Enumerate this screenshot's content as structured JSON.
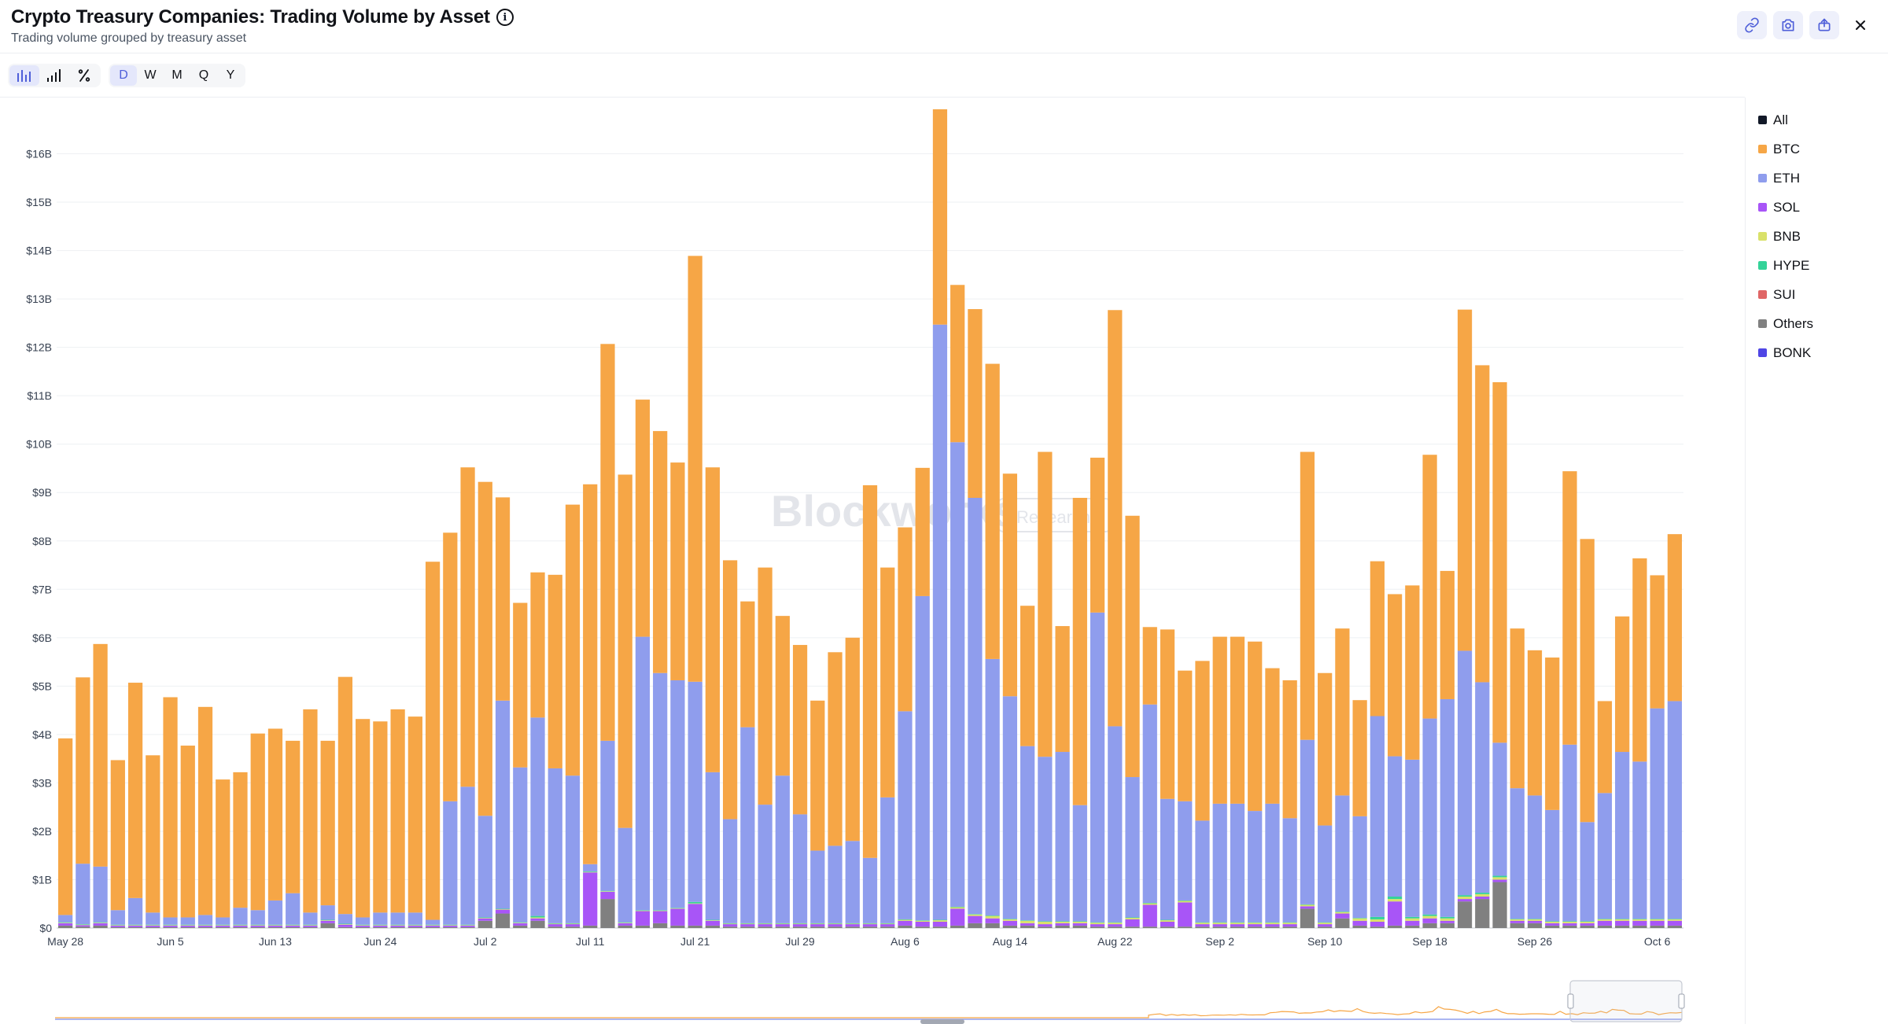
{
  "header": {
    "title": "Crypto Treasury Companies: Trading Volume by Asset",
    "subtitle": "Trading volume grouped by treasury asset"
  },
  "toolbar": {
    "chart_modes": [
      "bar-chart-icon",
      "bar-ascending-icon",
      "percent-icon"
    ],
    "timeframes": [
      "D",
      "W",
      "M",
      "Q",
      "Y"
    ],
    "active_timeframe": "D"
  },
  "header_actions": [
    "link-icon",
    "camera-icon",
    "share-icon",
    "close-icon"
  ],
  "legend": [
    {
      "name": "All",
      "color": "#111827"
    },
    {
      "name": "BTC",
      "color": "#f6a646"
    },
    {
      "name": "ETH",
      "color": "#8f9ded"
    },
    {
      "name": "SOL",
      "color": "#a855f7"
    },
    {
      "name": "BNB",
      "color": "#d9e16a"
    },
    {
      "name": "HYPE",
      "color": "#34d399"
    },
    {
      "name": "SUI",
      "color": "#e06666"
    },
    {
      "name": "Others",
      "color": "#808080"
    },
    {
      "name": "BONK",
      "color": "#4f46e5"
    }
  ],
  "watermark": {
    "brand": "Blockworks",
    "tag": "Research"
  },
  "chart_data": {
    "type": "bar",
    "stacked": true,
    "title": "Crypto Treasury Companies: Trading Volume by Asset",
    "ylim": [
      0,
      17
    ],
    "yticks": [
      "$0",
      "$1B",
      "$2B",
      "$3B",
      "$4B",
      "$5B",
      "$6B",
      "$7B",
      "$8B",
      "$9B",
      "$10B",
      "$11B",
      "$12B",
      "$13B",
      "$14B",
      "$15B",
      "$16B"
    ],
    "xtick_labels": [
      {
        "label": "May 28",
        "index": 0
      },
      {
        "label": "Jun 5",
        "index": 6
      },
      {
        "label": "Jun 13",
        "index": 12
      },
      {
        "label": "Jun 24",
        "index": 18
      },
      {
        "label": "Jul 2",
        "index": 24
      },
      {
        "label": "Jul 11",
        "index": 30
      },
      {
        "label": "Jul 21",
        "index": 36
      },
      {
        "label": "Jul 29",
        "index": 42
      },
      {
        "label": "Aug 6",
        "index": 48
      },
      {
        "label": "Aug 14",
        "index": 54
      },
      {
        "label": "Aug 22",
        "index": 60
      },
      {
        "label": "Sep 2",
        "index": 66
      },
      {
        "label": "Sep 10",
        "index": 72
      },
      {
        "label": "Sep 18",
        "index": 78
      },
      {
        "label": "Sep 26",
        "index": 84
      },
      {
        "label": "Oct 6",
        "index": 91
      }
    ],
    "series": [
      {
        "name": "Others",
        "color": "#808080",
        "values": [
          0.05,
          0.03,
          0.05,
          0.02,
          0.02,
          0.02,
          0.02,
          0.02,
          0.02,
          0.02,
          0.02,
          0.02,
          0.02,
          0.02,
          0.02,
          0.1,
          0.02,
          0.02,
          0.02,
          0.02,
          0.02,
          0.02,
          0.02,
          0.02,
          0.15,
          0.3,
          0.05,
          0.15,
          0.03,
          0.03,
          0.05,
          0.6,
          0.05,
          0.05,
          0.1,
          0.05,
          0.05,
          0.05,
          0.03,
          0.03,
          0.03,
          0.03,
          0.03,
          0.03,
          0.03,
          0.03,
          0.03,
          0.03,
          0.05,
          0.03,
          0.03,
          0.05,
          0.1,
          0.1,
          0.05,
          0.05,
          0.03,
          0.05,
          0.05,
          0.03,
          0.03,
          0.03,
          0.03,
          0.03,
          0.03,
          0.03,
          0.03,
          0.03,
          0.03,
          0.03,
          0.03,
          0.4,
          0.03,
          0.2,
          0.05,
          0.03,
          0.05,
          0.05,
          0.1,
          0.1,
          0.55,
          0.6,
          0.95,
          0.1,
          0.1,
          0.05,
          0.05,
          0.05,
          0.05,
          0.05,
          0.05,
          0.05,
          0.05
        ]
      },
      {
        "name": "SOL",
        "color": "#a855f7",
        "values": [
          0.05,
          0.03,
          0.05,
          0.03,
          0.03,
          0.03,
          0.03,
          0.03,
          0.03,
          0.03,
          0.03,
          0.03,
          0.03,
          0.03,
          0.03,
          0.05,
          0.05,
          0.03,
          0.03,
          0.03,
          0.03,
          0.03,
          0.03,
          0.03,
          0.05,
          0.08,
          0.05,
          0.05,
          0.05,
          0.05,
          1.1,
          0.15,
          0.05,
          0.3,
          0.25,
          0.35,
          0.45,
          0.1,
          0.05,
          0.05,
          0.05,
          0.05,
          0.05,
          0.05,
          0.05,
          0.05,
          0.05,
          0.05,
          0.1,
          0.1,
          0.1,
          0.35,
          0.15,
          0.1,
          0.1,
          0.05,
          0.05,
          0.05,
          0.05,
          0.05,
          0.05,
          0.15,
          0.45,
          0.1,
          0.5,
          0.05,
          0.05,
          0.05,
          0.05,
          0.05,
          0.05,
          0.05,
          0.05,
          0.1,
          0.1,
          0.1,
          0.5,
          0.1,
          0.1,
          0.05,
          0.05,
          0.05,
          0.05,
          0.05,
          0.05,
          0.05,
          0.05,
          0.05,
          0.1,
          0.1,
          0.1,
          0.1,
          0.1
        ]
      },
      {
        "name": "BNB",
        "color": "#d9e16a",
        "values": [
          0.01,
          0.01,
          0.01,
          0.01,
          0.01,
          0.01,
          0.01,
          0.01,
          0.01,
          0.01,
          0.01,
          0.01,
          0.01,
          0.01,
          0.01,
          0.01,
          0.01,
          0.01,
          0.01,
          0.01,
          0.01,
          0.01,
          0.01,
          0.01,
          0.01,
          0.01,
          0.01,
          0.02,
          0.01,
          0.01,
          0.01,
          0.01,
          0.01,
          0.01,
          0.01,
          0.01,
          0.01,
          0.01,
          0.01,
          0.01,
          0.01,
          0.01,
          0.01,
          0.01,
          0.01,
          0.01,
          0.01,
          0.01,
          0.02,
          0.02,
          0.03,
          0.03,
          0.03,
          0.05,
          0.03,
          0.05,
          0.05,
          0.03,
          0.03,
          0.03,
          0.03,
          0.03,
          0.03,
          0.03,
          0.03,
          0.03,
          0.03,
          0.03,
          0.03,
          0.03,
          0.03,
          0.03,
          0.03,
          0.03,
          0.05,
          0.05,
          0.05,
          0.05,
          0.05,
          0.05,
          0.05,
          0.05,
          0.05,
          0.03,
          0.03,
          0.03,
          0.03,
          0.03,
          0.03,
          0.03,
          0.03,
          0.03,
          0.03
        ]
      },
      {
        "name": "HYPE",
        "color": "#34d399",
        "values": [
          0.01,
          0.01,
          0.01,
          0.01,
          0.01,
          0.01,
          0.01,
          0.01,
          0.01,
          0.01,
          0.01,
          0.01,
          0.01,
          0.01,
          0.01,
          0.01,
          0.01,
          0.01,
          0.01,
          0.01,
          0.01,
          0.01,
          0.01,
          0.01,
          0.01,
          0.01,
          0.01,
          0.03,
          0.01,
          0.01,
          0.01,
          0.01,
          0.01,
          0.01,
          0.01,
          0.01,
          0.03,
          0.01,
          0.01,
          0.01,
          0.01,
          0.01,
          0.01,
          0.01,
          0.01,
          0.01,
          0.01,
          0.01,
          0.01,
          0.01,
          0.01,
          0.01,
          0.01,
          0.01,
          0.01,
          0.01,
          0.01,
          0.01,
          0.01,
          0.01,
          0.01,
          0.01,
          0.01,
          0.01,
          0.01,
          0.01,
          0.01,
          0.01,
          0.01,
          0.01,
          0.01,
          0.01,
          0.01,
          0.01,
          0.01,
          0.05,
          0.05,
          0.03,
          0.03,
          0.03,
          0.03,
          0.03,
          0.03,
          0.01,
          0.01,
          0.01,
          0.01,
          0.01,
          0.01,
          0.01,
          0.01,
          0.01,
          0.01
        ]
      },
      {
        "name": "ETH",
        "color": "#8f9ded",
        "values": [
          0.15,
          1.25,
          1.15,
          0.3,
          0.55,
          0.25,
          0.15,
          0.15,
          0.2,
          0.15,
          0.35,
          0.3,
          0.5,
          0.65,
          0.25,
          0.3,
          0.2,
          0.15,
          0.25,
          0.25,
          0.25,
          0.1,
          2.55,
          2.85,
          2.1,
          4.3,
          3.2,
          4.1,
          3.2,
          3.05,
          0.15,
          3.1,
          1.95,
          5.65,
          4.9,
          4.7,
          4.55,
          3.05,
          2.15,
          4.05,
          2.45,
          3.05,
          2.25,
          1.5,
          1.6,
          1.7,
          1.35,
          2.6,
          4.3,
          6.7,
          12.3,
          9.6,
          8.6,
          5.3,
          4.6,
          3.6,
          3.4,
          3.5,
          2.4,
          6.4,
          4.05,
          2.9,
          4.1,
          2.5,
          2.05,
          2.1,
          2.45,
          2.45,
          2.3,
          2.45,
          2.15,
          3.4,
          2.0,
          2.4,
          2.1,
          4.15,
          2.9,
          3.25,
          4.05,
          4.5,
          5.05,
          4.35,
          2.75,
          2.7,
          2.55,
          2.3,
          3.65,
          2.05,
          2.6,
          3.45,
          3.25,
          4.35,
          4.5
        ]
      },
      {
        "name": "BTC",
        "color": "#f6a646",
        "values": [
          3.65,
          3.85,
          4.6,
          3.1,
          4.45,
          3.25,
          4.55,
          3.55,
          4.3,
          2.85,
          2.8,
          3.65,
          3.55,
          3.15,
          4.2,
          3.4,
          4.9,
          4.1,
          3.95,
          4.2,
          4.05,
          7.4,
          5.55,
          6.6,
          6.9,
          4.2,
          3.4,
          3.0,
          4.0,
          5.6,
          7.85,
          8.2,
          7.3,
          4.9,
          5.0,
          4.5,
          8.8,
          6.3,
          5.35,
          2.6,
          4.9,
          3.3,
          3.5,
          3.1,
          4.0,
          4.2,
          7.7,
          4.75,
          3.8,
          2.65,
          4.45,
          3.25,
          3.9,
          6.1,
          4.6,
          2.9,
          6.3,
          2.6,
          6.35,
          3.2,
          8.6,
          5.4,
          1.6,
          3.5,
          2.7,
          3.3,
          3.45,
          3.45,
          3.5,
          2.8,
          2.85,
          5.95,
          3.15,
          3.45,
          2.4,
          3.2,
          3.35,
          3.6,
          5.45,
          2.65,
          7.05,
          6.55,
          7.45,
          3.3,
          3.0,
          3.15,
          5.65,
          5.85,
          1.9,
          2.8,
          4.2,
          2.75,
          3.45
        ]
      }
    ]
  }
}
